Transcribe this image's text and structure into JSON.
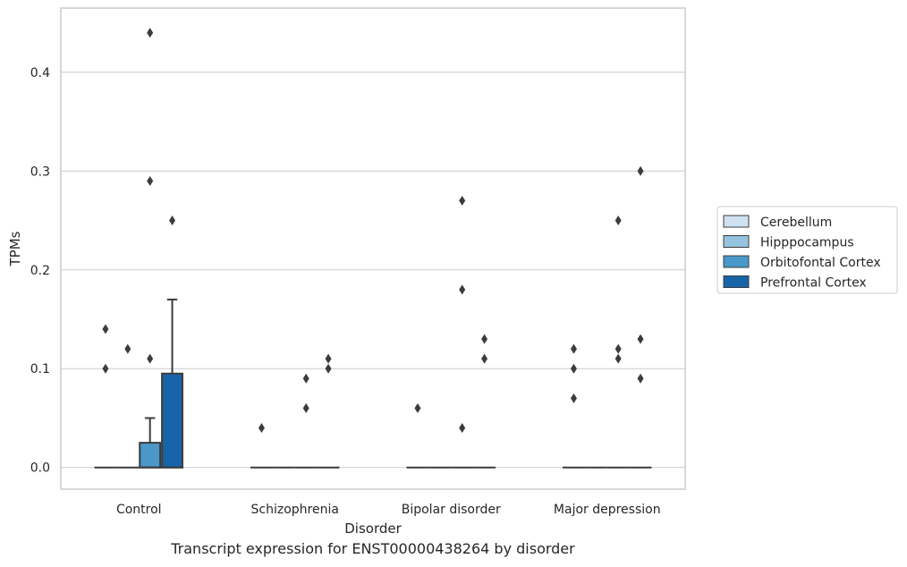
{
  "caption": "Transcript expression for ENST00000438264 by disorder",
  "chart_data": {
    "type": "box",
    "xlabel": "Disorder",
    "ylabel": "TPMs",
    "ylim": [
      -0.022,
      0.465
    ],
    "yticks": [
      0.0,
      0.1,
      0.2,
      0.3,
      0.4
    ],
    "ytick_labels": [
      "0.0",
      "0.1",
      "0.2",
      "0.3",
      "0.4"
    ],
    "grid": "horizontal",
    "legend_position": "right",
    "categories": [
      "Control",
      "Schizophrenia",
      "Bipolar disorder",
      "Major depression"
    ],
    "series": [
      {
        "name": "Cerebellum",
        "color": "#d0e1f2",
        "boxes": [
          {
            "q1": 0,
            "median": 0,
            "q3": 0,
            "whisker_low": 0,
            "whisker_high": 0,
            "outliers": [
              0.14,
              0.1
            ]
          },
          {
            "q1": 0,
            "median": 0,
            "q3": 0,
            "whisker_low": 0,
            "whisker_high": 0,
            "outliers": [
              0.04
            ]
          },
          {
            "q1": 0,
            "median": 0,
            "q3": 0,
            "whisker_low": 0,
            "whisker_high": 0,
            "outliers": [
              0.06
            ]
          },
          {
            "q1": 0,
            "median": 0,
            "q3": 0,
            "whisker_low": 0,
            "whisker_high": 0,
            "outliers": [
              0.12,
              0.1,
              0.07
            ]
          }
        ]
      },
      {
        "name": "Hipppocampus",
        "color": "#94c4df",
        "boxes": [
          {
            "q1": 0,
            "median": 0,
            "q3": 0,
            "whisker_low": 0,
            "whisker_high": 0,
            "outliers": [
              0.12
            ]
          },
          {
            "q1": 0,
            "median": 0,
            "q3": 0,
            "whisker_low": 0,
            "whisker_high": 0,
            "outliers": []
          },
          {
            "q1": 0,
            "median": 0,
            "q3": 0,
            "whisker_low": 0,
            "whisker_high": 0,
            "outliers": []
          },
          {
            "q1": 0,
            "median": 0,
            "q3": 0,
            "whisker_low": 0,
            "whisker_high": 0,
            "outliers": []
          }
        ]
      },
      {
        "name": "Orbitofontal Cortex",
        "color": "#4a98c9",
        "boxes": [
          {
            "q1": 0,
            "median": 0,
            "q3": 0.025,
            "whisker_low": 0,
            "whisker_high": 0.05,
            "outliers": [
              0.44,
              0.29,
              0.11
            ]
          },
          {
            "q1": 0,
            "median": 0,
            "q3": 0,
            "whisker_low": 0,
            "whisker_high": 0,
            "outliers": [
              0.09,
              0.06
            ]
          },
          {
            "q1": 0,
            "median": 0,
            "q3": 0,
            "whisker_low": 0,
            "whisker_high": 0,
            "outliers": [
              0.27,
              0.18,
              0.04
            ]
          },
          {
            "q1": 0,
            "median": 0,
            "q3": 0,
            "whisker_low": 0,
            "whisker_high": 0,
            "outliers": [
              0.25,
              0.12,
              0.11
            ]
          }
        ]
      },
      {
        "name": "Prefrontal Cortex",
        "color": "#1764ab",
        "boxes": [
          {
            "q1": 0,
            "median": 0,
            "q3": 0.095,
            "whisker_low": 0,
            "whisker_high": 0.17,
            "outliers": [
              0.25
            ]
          },
          {
            "q1": 0,
            "median": 0,
            "q3": 0,
            "whisker_low": 0,
            "whisker_high": 0,
            "outliers": [
              0.11,
              0.1
            ]
          },
          {
            "q1": 0,
            "median": 0,
            "q3": 0,
            "whisker_low": 0,
            "whisker_high": 0,
            "outliers": [
              0.13,
              0.11
            ]
          },
          {
            "q1": 0,
            "median": 0,
            "q3": 0,
            "whisker_low": 0,
            "whisker_high": 0,
            "outliers": [
              0.3,
              0.13,
              0.09
            ]
          }
        ]
      }
    ]
  }
}
